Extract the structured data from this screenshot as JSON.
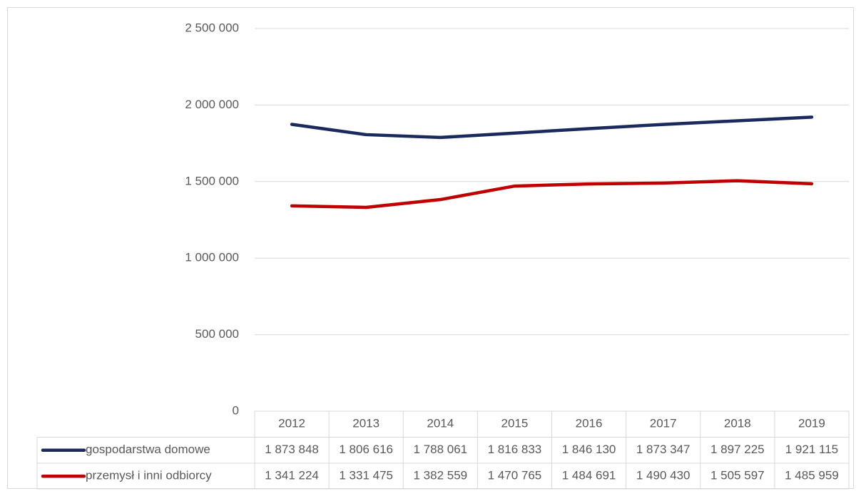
{
  "chart_data": {
    "type": "line",
    "categories": [
      "2012",
      "2013",
      "2014",
      "2015",
      "2016",
      "2017",
      "2018",
      "2019"
    ],
    "series": [
      {
        "name": "gospodarstwa domowe",
        "color": "#1b2a5e",
        "values": [
          1873848,
          1806616,
          1788061,
          1816833,
          1846130,
          1873347,
          1897225,
          1921115
        ],
        "value_labels": [
          "1 873 848",
          "1 806 616",
          "1 788 061",
          "1 816 833",
          "1 846 130",
          "1 873 347",
          "1 897 225",
          "1 921 115"
        ]
      },
      {
        "name": "przemysł i inni odbiorcy",
        "color": "#c00000",
        "values": [
          1341224,
          1331475,
          1382559,
          1470765,
          1484691,
          1490430,
          1505597,
          1485959
        ],
        "value_labels": [
          "1 341 224",
          "1 331 475",
          "1 382 559",
          "1 470 765",
          "1 484 691",
          "1 490 430",
          "1 505 597",
          "1 485 959"
        ]
      }
    ],
    "ylim": [
      0,
      2500000
    ],
    "yticks": [
      0,
      {
        "value": 500000,
        "label": "500 000"
      },
      {
        "value": 1000000,
        "label": "1 000 000"
      },
      {
        "value": 1500000,
        "label": "1 500 000"
      },
      {
        "value": 2000000,
        "label": "2 000 000"
      },
      {
        "value": 2500000,
        "label": "2 500 000"
      }
    ],
    "grid": true
  }
}
